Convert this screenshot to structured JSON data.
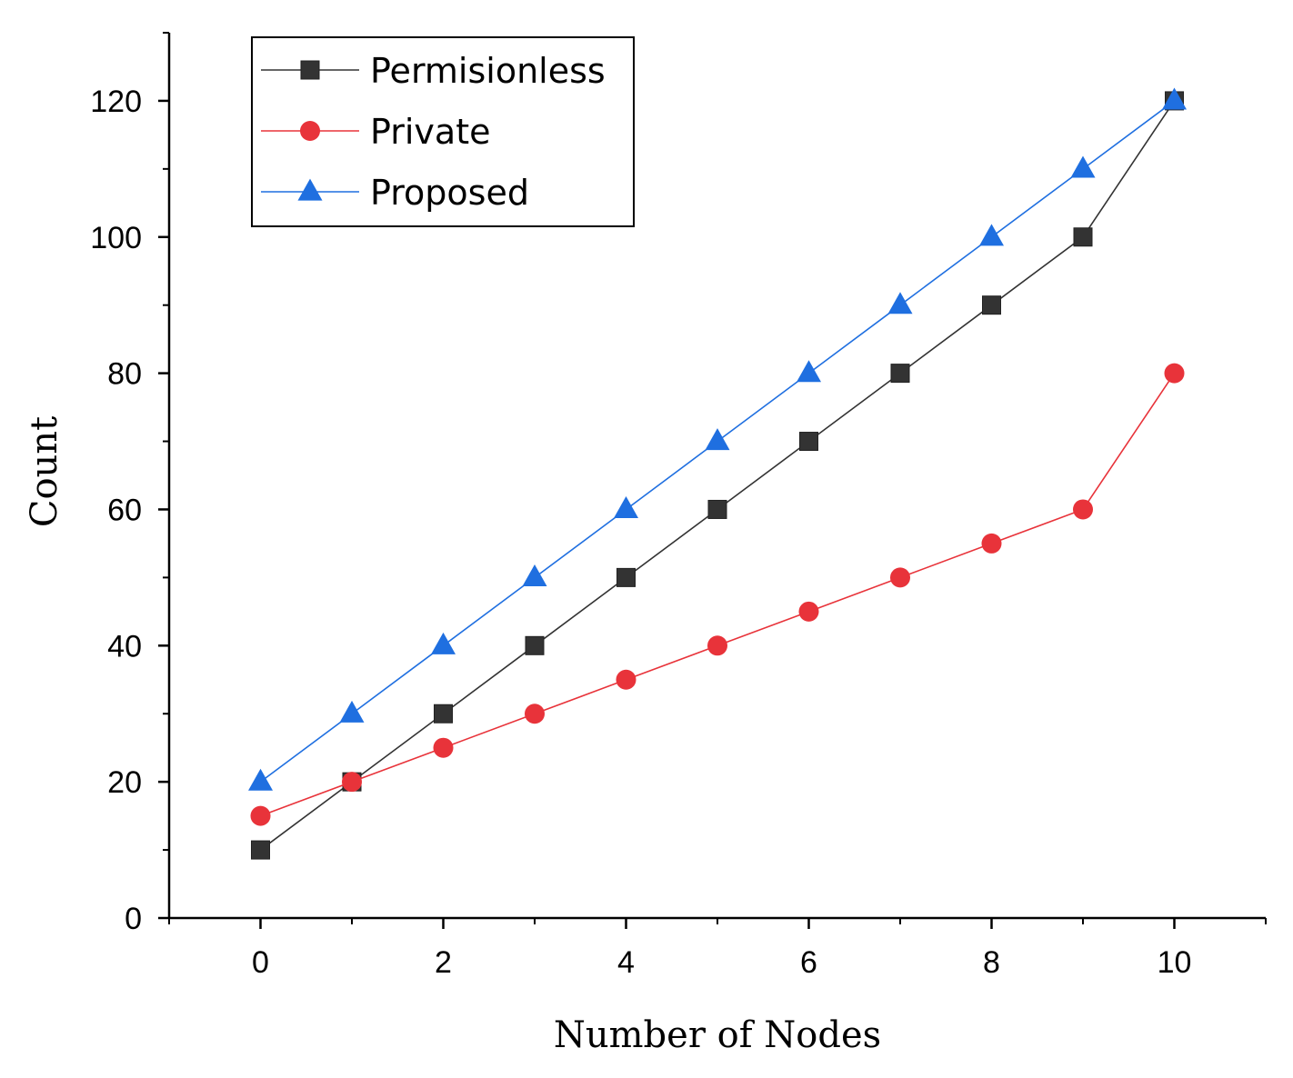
{
  "chart_data": {
    "type": "line",
    "title": "",
    "xlabel": "Number of Nodes",
    "ylabel": "Count",
    "xlim": [
      -1,
      11
    ],
    "ylim": [
      0,
      130
    ],
    "x_ticks": [
      0,
      2,
      4,
      6,
      8,
      10
    ],
    "x_minor_ticks": [
      1,
      3,
      5,
      7,
      9
    ],
    "y_ticks": [
      0,
      20,
      40,
      60,
      80,
      100,
      120
    ],
    "y_minor_ticks": [
      10,
      30,
      50,
      70,
      90,
      110,
      130
    ],
    "grid": false,
    "legend_position": "top-left",
    "x": [
      0,
      1,
      2,
      3,
      4,
      5,
      6,
      7,
      8,
      9,
      10
    ],
    "series": [
      {
        "name": "Permisionless",
        "color": "#333333",
        "line_color": "#333333",
        "marker": "square",
        "values": [
          10,
          20,
          30,
          40,
          50,
          60,
          70,
          80,
          90,
          100,
          120
        ]
      },
      {
        "name": "Private",
        "color": "#e8333a",
        "line_color": "#e8333a",
        "marker": "circle",
        "values": [
          15,
          20,
          25,
          30,
          35,
          40,
          45,
          50,
          55,
          60,
          80
        ]
      },
      {
        "name": "Proposed",
        "color": "#1f6fe0",
        "line_color": "#1f6fe0",
        "marker": "triangle",
        "values": [
          20,
          30,
          40,
          50,
          60,
          70,
          80,
          90,
          100,
          110,
          120
        ]
      }
    ]
  }
}
